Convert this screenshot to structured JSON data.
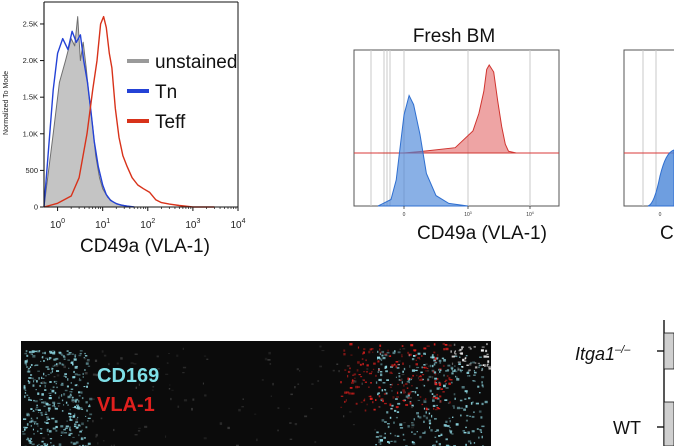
{
  "colors": {
    "unstained": "#9a9a9a",
    "tn": "#2442d6",
    "teff": "#d8321a",
    "fresh_blue": "#4a86d8",
    "fresh_red": "#e05a5a",
    "cd169": "#7fe0e8",
    "vla1": "#e0201e"
  },
  "chart_data": [
    {
      "type": "area",
      "panel": "histogram",
      "xlabel": "CD49a (VLA-1)",
      "ylabel": "Normalized To Mode",
      "x_scale": "log",
      "xlim": [
        0.5,
        10000
      ],
      "ylim": [
        0,
        2800
      ],
      "ytick_labels": [
        "0",
        "500",
        "1.0K",
        "1.5K",
        "2.0K",
        "2.5K"
      ],
      "ytick_values": [
        0,
        500,
        1000,
        1500,
        2000,
        2500
      ],
      "xtick_values": [
        1,
        10,
        100,
        1000,
        10000
      ],
      "xtick_labels": [
        "10",
        "10",
        "10",
        "10",
        "10"
      ],
      "xtick_exps": [
        "0",
        "1",
        "2",
        "3",
        "4"
      ],
      "legend_position": "right",
      "series": [
        {
          "name": "unstained",
          "x": [
            0.5,
            0.8,
            1.1,
            1.5,
            2.0,
            2.4,
            2.8,
            3.2,
            3.7,
            4.3,
            5.0,
            6.0,
            7.0,
            8.5,
            10,
            13,
            17,
            22,
            30,
            40
          ],
          "y": [
            0,
            1000,
            1700,
            2000,
            2300,
            2200,
            2600,
            2000,
            2250,
            1900,
            1500,
            1100,
            700,
            400,
            250,
            130,
            70,
            40,
            20,
            0
          ]
        },
        {
          "name": "Tn",
          "x": [
            0.5,
            0.8,
            1.0,
            1.3,
            1.7,
            2.1,
            2.6,
            3.2,
            3.8,
            4.6,
            5.5,
            6.5,
            8.0,
            10,
            12,
            15,
            20,
            26,
            35,
            50
          ],
          "y": [
            0,
            1600,
            2100,
            2300,
            2150,
            2400,
            2250,
            2350,
            2000,
            1700,
            1300,
            900,
            550,
            300,
            170,
            90,
            45,
            25,
            12,
            0
          ]
        },
        {
          "name": "Teff",
          "x": [
            0.5,
            1,
            2,
            3,
            4.5,
            6,
            7.5,
            9,
            10.5,
            12,
            14,
            16,
            19,
            23,
            28,
            35,
            45,
            60,
            80,
            110,
            150,
            200,
            300,
            500,
            1000,
            3000
          ],
          "y": [
            0,
            50,
            150,
            400,
            1000,
            1600,
            2000,
            2500,
            2600,
            2450,
            2100,
            1900,
            1350,
            950,
            700,
            550,
            400,
            300,
            250,
            200,
            100,
            60,
            40,
            20,
            0,
            0
          ]
        }
      ]
    },
    {
      "type": "area",
      "panel": "fresh-bm",
      "title": "Fresh BM",
      "xlabel": "CD49a (VLA-1)",
      "x_scale": "biexponential",
      "ylim": [
        0,
        1
      ],
      "xtick_labels": [
        "0",
        "10",
        "10"
      ],
      "xtick_exps": [
        "",
        "3",
        "4"
      ],
      "series": [
        {
          "color": "red",
          "x": [
            -1000,
            0,
            300,
            800,
            1200,
            1500,
            1800,
            2000,
            2200,
            2600,
            3000,
            3500,
            4000,
            4500,
            6000
          ],
          "y": [
            0.0,
            0.0,
            0.02,
            0.06,
            0.25,
            0.45,
            0.7,
            0.95,
            1.0,
            0.92,
            0.6,
            0.3,
            0.1,
            0.02,
            0.0
          ]
        },
        {
          "color": "blue",
          "x": [
            -1000,
            -500,
            -300,
            -150,
            0,
            80,
            150,
            250,
            350,
            500,
            700,
            1000
          ],
          "y": [
            0.0,
            0.05,
            0.2,
            0.45,
            0.7,
            0.85,
            0.78,
            0.55,
            0.25,
            0.08,
            0.02,
            0.0
          ]
        }
      ]
    }
  ],
  "partial_panel": {
    "xlabel_visible": "C",
    "tick_visible": "0"
  },
  "bottom_right": {
    "row1_label": "Itga1",
    "row1_sup": "–/–",
    "row2_label": "WT"
  },
  "micrograph": {
    "label_cd169": "CD169",
    "label_vla1": "VLA-1"
  }
}
